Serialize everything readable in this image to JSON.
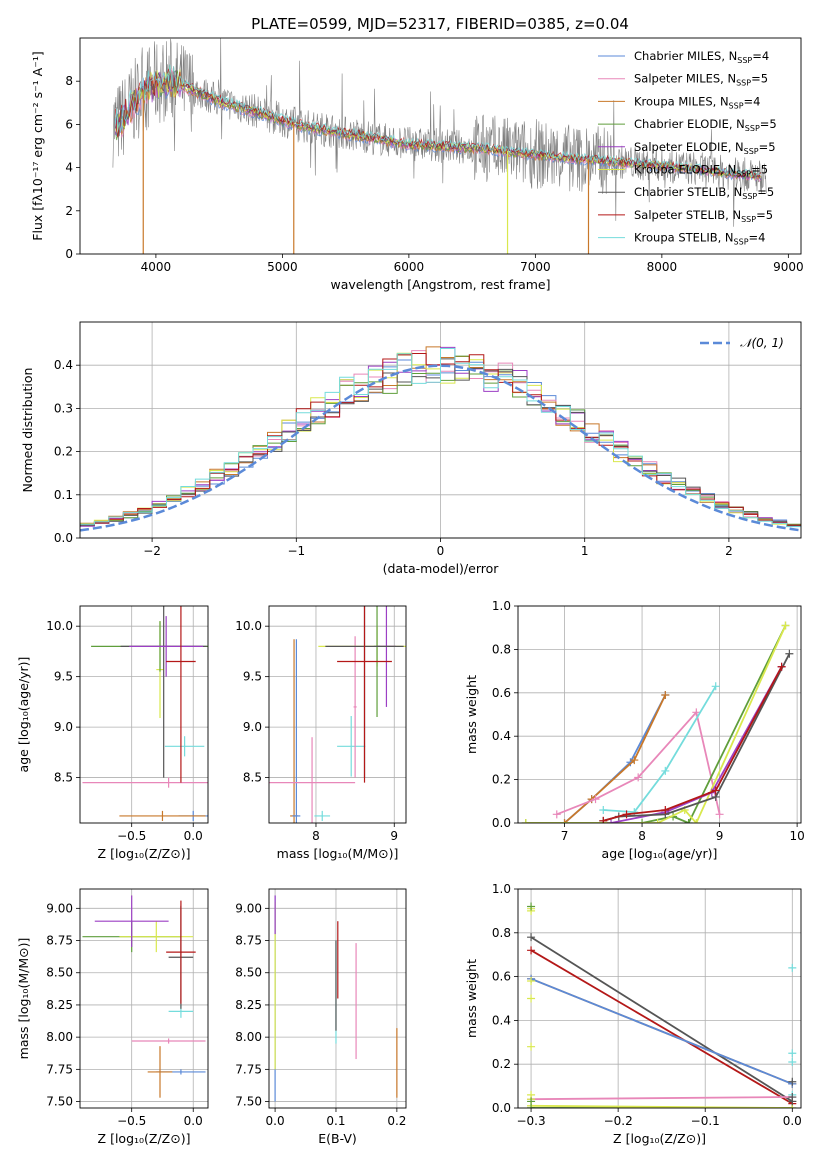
{
  "title": "PLATE=0599, MJD=52317, FIBERID=0385, z=0.04",
  "models": [
    {
      "name": "Chabrier MILES, N",
      "nssp": "4",
      "color": "#5b8ad8"
    },
    {
      "name": "Salpeter MILES, N",
      "nssp": "5",
      "color": "#e887b9"
    },
    {
      "name": "Kroupa MILES, N",
      "nssp": "4",
      "color": "#c8782a"
    },
    {
      "name": "Chabrier ELODIE, N",
      "nssp": "5",
      "color": "#5f9e3b"
    },
    {
      "name": "Salpeter ELODIE, N",
      "nssp": "5",
      "color": "#9c3fc4"
    },
    {
      "name": "Kroupa ELODIE, N",
      "nssp": "5",
      "color": "#d9e84e"
    },
    {
      "name": "Chabrier STELIB, N",
      "nssp": "5",
      "color": "#555555"
    },
    {
      "name": "Salpeter STELIB, N",
      "nssp": "5",
      "color": "#b41818"
    },
    {
      "name": "Kroupa STELIB, N",
      "nssp": "4",
      "color": "#74dcdc"
    }
  ],
  "chart_data": [
    {
      "id": "spectrum",
      "type": "line",
      "xlabel": "wavelength [Angstrom, rest frame]",
      "ylabel": "Flux [fλ10⁻¹⁷ erg cm⁻² s⁻¹ A⁻¹]",
      "xlim": [
        3400,
        9100
      ],
      "ylim": [
        0,
        10
      ],
      "xticks": [
        4000,
        5000,
        6000,
        7000,
        8000,
        9000
      ],
      "yticks": [
        0,
        2,
        4,
        6,
        8
      ],
      "observed_color": "#808080",
      "continuum_x": [
        3700,
        3800,
        3900,
        4000,
        4100,
        4300,
        4500,
        4800,
        5000,
        5200,
        5500,
        5800,
        6000,
        6300,
        6600,
        7000,
        7400,
        7800,
        8200,
        8600,
        8800
      ],
      "continuum_y": [
        6.0,
        6.8,
        7.6,
        7.9,
        8.1,
        7.6,
        7.1,
        6.6,
        6.2,
        5.9,
        5.6,
        5.3,
        5.1,
        5.0,
        4.9,
        4.6,
        4.4,
        4.2,
        4.0,
        3.7,
        3.6
      ]
    },
    {
      "id": "residuals",
      "type": "histogram",
      "xlabel": "(data-model)/error",
      "ylabel": "Normed distribution",
      "xlim": [
        -2.5,
        2.5
      ],
      "ylim": [
        0,
        0.5
      ],
      "xticks": [
        -2,
        -1,
        0,
        1,
        2
      ],
      "yticks": [
        0.0,
        0.1,
        0.2,
        0.3,
        0.4
      ],
      "legend": "𝒩(0, 1)",
      "legend_color": "#5b8ad8",
      "grid": true
    },
    {
      "id": "Z_age",
      "type": "errorbar",
      "xlabel": "Z [log₁₀(Z/Z⊙)]",
      "ylabel": "age  [log₁₀(age/yr)]",
      "xlim": [
        -0.92,
        0.12
      ],
      "ylim": [
        8.05,
        10.2
      ],
      "xticks": [
        -0.5,
        0.0
      ],
      "yticks": [
        8.5,
        9.0,
        9.5,
        10.0
      ],
      "points": [
        {
          "c": 0,
          "x": 0.0,
          "y": 8.12,
          "xerr": 0.12,
          "yerr": 0.05
        },
        {
          "c": 2,
          "x": -0.25,
          "y": 8.12,
          "xerr": 0.35,
          "yerr": 0.05
        },
        {
          "c": 1,
          "x": -0.2,
          "y": 8.45,
          "xerr": 0.7,
          "yerr": 0.05
        },
        {
          "c": 8,
          "x": -0.07,
          "y": 8.81,
          "xerr": 0.16,
          "yerr": 0.1
        },
        {
          "c": 5,
          "x": -0.27,
          "y": 9.57,
          "xerr": 0.03,
          "yerr": 0.48
        },
        {
          "c": 3,
          "x": -0.27,
          "y": 9.8,
          "xerr": 0.56,
          "yerr": 0.25
        },
        {
          "c": 6,
          "x": -0.24,
          "y": 9.8,
          "xerr": 0.35,
          "yerr": 1.3
        },
        {
          "c": 4,
          "x": -0.22,
          "y": 9.8,
          "xerr": 0.3,
          "yerr": 0.3
        },
        {
          "c": 7,
          "x": -0.1,
          "y": 9.65,
          "xerr": 0.12,
          "yerr": 1.2
        }
      ]
    },
    {
      "id": "mass_age",
      "type": "errorbar",
      "xlabel": "mass [log₁₀(M/M⊙)]",
      "ylabel": "",
      "xlim": [
        7.4,
        9.15
      ],
      "ylim": [
        8.05,
        10.2
      ],
      "xticks": [
        8,
        9
      ],
      "yticks": [
        8.5,
        9.0,
        9.5,
        10.0
      ],
      "points": [
        {
          "c": 2,
          "x": 7.72,
          "y": 8.12,
          "xerr": 0.05,
          "yerr": 1.75
        },
        {
          "c": 0,
          "x": 7.75,
          "y": 8.12,
          "xerr": 0.05,
          "yerr": 1.75
        },
        {
          "c": 8,
          "x": 8.08,
          "y": 8.12,
          "xerr": 0.1,
          "yerr": 0.05
        },
        {
          "c": 1,
          "x": 7.95,
          "y": 8.45,
          "xerr": 0.55,
          "yerr": 0.45
        },
        {
          "c": 8,
          "x": 8.45,
          "y": 8.81,
          "xerr": 0.18,
          "yerr": 0.3
        },
        {
          "c": 1,
          "x": 8.5,
          "y": 9.2,
          "xerr": 0.02,
          "yerr": 0.7
        },
        {
          "c": 5,
          "x": 8.78,
          "y": 9.8,
          "xerr": 0.75,
          "yerr": 0.2
        },
        {
          "c": 3,
          "x": 8.78,
          "y": 9.8,
          "xerr": 0.04,
          "yerr": 0.7
        },
        {
          "c": 4,
          "x": 8.9,
          "y": 9.8,
          "xerr": 0.12,
          "yerr": 0.6
        },
        {
          "c": 6,
          "x": 8.62,
          "y": 9.8,
          "xerr": 0.5,
          "yerr": 1.3
        },
        {
          "c": 7,
          "x": 8.62,
          "y": 9.65,
          "xerr": 0.35,
          "yerr": 1.2
        }
      ]
    },
    {
      "id": "age_weight",
      "type": "line",
      "xlabel": "age  [log₁₀(age/yr)]",
      "ylabel": "mass weight",
      "xlim": [
        6.4,
        10.05
      ],
      "ylim": [
        0,
        1
      ],
      "xticks": [
        7,
        8,
        9,
        10
      ],
      "yticks": [
        0.0,
        0.2,
        0.4,
        0.6,
        0.8,
        1.0
      ],
      "series": [
        {
          "c": 0,
          "x": [
            7.0,
            7.35,
            7.85,
            8.3
          ],
          "y": [
            0.0,
            0.11,
            0.28,
            0.59
          ]
        },
        {
          "c": 2,
          "x": 7.0,
          "x_": [],
          "x2": [
            7.0,
            7.35,
            7.9,
            8.3
          ],
          "y": [
            0.0,
            0.11,
            0.29,
            0.59
          ]
        },
        {
          "c": 1,
          "x": [
            6.9,
            7.4,
            7.95,
            8.7,
            9.0
          ],
          "y": [
            0.04,
            0.11,
            0.21,
            0.51,
            0.04
          ]
        },
        {
          "c": 8,
          "x": [
            7.5,
            7.9,
            8.3,
            8.95
          ],
          "y": [
            0.06,
            0.05,
            0.24,
            0.63
          ]
        },
        {
          "c": 3,
          "x": [
            6.5,
            8.0,
            8.4,
            8.6,
            9.85
          ],
          "y": [
            0.0,
            0.0,
            0.03,
            0.0,
            0.91
          ]
        },
        {
          "c": 5,
          "x": [
            6.5,
            8.2,
            8.55,
            8.7,
            9.85
          ],
          "y": [
            0.0,
            0.0,
            0.06,
            0.0,
            0.91
          ]
        },
        {
          "c": 4,
          "x": [
            7.6,
            8.3,
            8.9,
            9.8
          ],
          "y": [
            0.0,
            0.05,
            0.14,
            0.72
          ]
        },
        {
          "c": 6,
          "x": [
            7.5,
            7.7,
            8.3,
            8.95,
            9.9
          ],
          "y": [
            0.01,
            0.03,
            0.04,
            0.12,
            0.78
          ]
        },
        {
          "c": 7,
          "x": [
            7.5,
            7.8,
            8.3,
            8.95,
            9.8
          ],
          "y": [
            0.01,
            0.04,
            0.06,
            0.15,
            0.72
          ]
        }
      ]
    },
    {
      "id": "Z_mass",
      "type": "errorbar",
      "xlabel": "Z [log₁₀(Z/Z⊙)]",
      "ylabel": "mass [log₁₀(M/M⊙)]",
      "xlim": [
        -0.92,
        0.12
      ],
      "ylim": [
        7.45,
        9.15
      ],
      "xticks": [
        -0.5,
        0.0
      ],
      "yticks": [
        7.5,
        7.75,
        8.0,
        8.25,
        8.5,
        8.75,
        9.0
      ],
      "points": [
        {
          "c": 0,
          "x": -0.1,
          "y": 7.73,
          "xerr": 0.2,
          "yerr": 0.02
        },
        {
          "c": 2,
          "x": -0.27,
          "y": 7.73,
          "xerr": 0.1,
          "yerr": 0.2
        },
        {
          "c": 1,
          "x": -0.2,
          "y": 7.97,
          "xerr": 0.3,
          "yerr": 0.02
        },
        {
          "c": 8,
          "x": -0.1,
          "y": 8.2,
          "xerr": 0.1,
          "yerr": 0.05
        },
        {
          "c": 3,
          "x": -0.5,
          "y": 8.78,
          "xerr": 0.4,
          "yerr": 0.12
        },
        {
          "c": 5,
          "x": -0.3,
          "y": 8.78,
          "xerr": 0.3,
          "yerr": 0.12
        },
        {
          "c": 4,
          "x": -0.5,
          "y": 8.9,
          "xerr": 0.3,
          "yerr": 0.2
        },
        {
          "c": 6,
          "x": -0.1,
          "y": 8.62,
          "xerr": 0.1,
          "yerr": 0.4
        },
        {
          "c": 7,
          "x": -0.1,
          "y": 8.66,
          "xerr": 0.12,
          "yerr": 0.4
        }
      ]
    },
    {
      "id": "ebv_mass",
      "type": "errorbar",
      "xlabel": "E(B-V)",
      "ylabel": "",
      "xlim": [
        -0.01,
        0.215
      ],
      "ylim": [
        7.45,
        9.15
      ],
      "xticks": [
        0.0,
        0.1,
        0.2
      ],
      "yticks": [
        7.5,
        7.75,
        8.0,
        8.25,
        8.5,
        8.75,
        9.0
      ],
      "points": [
        {
          "c": 0,
          "x": 0.0,
          "y": 8.3,
          "xerr": 0.0,
          "yerr": 0.8
        },
        {
          "c": 5,
          "x": 0.0,
          "y": 8.4,
          "xerr": 0.0,
          "yerr": 0.65
        },
        {
          "c": 4,
          "x": 0.0,
          "y": 8.95,
          "xerr": 0.0,
          "yerr": 0.15
        },
        {
          "c": 8,
          "x": 0.1,
          "y": 8.35,
          "xerr": 0.0,
          "yerr": 0.4
        },
        {
          "c": 6,
          "x": 0.1,
          "y": 8.4,
          "xerr": 0.0,
          "yerr": 0.35
        },
        {
          "c": 7,
          "x": 0.103,
          "y": 8.6,
          "xerr": 0.0,
          "yerr": 0.3
        },
        {
          "c": 1,
          "x": 0.133,
          "y": 8.28,
          "xerr": 0.0,
          "yerr": 0.45
        },
        {
          "c": 2,
          "x": 0.2,
          "y": 7.8,
          "xerr": 0.0,
          "yerr": 0.27
        }
      ]
    },
    {
      "id": "Z_weight",
      "type": "line",
      "xlabel": "Z [log₁₀(Z/Z⊙)]",
      "ylabel": "mass weight",
      "xlim": [
        -0.315,
        0.01
      ],
      "ylim": [
        0,
        1
      ],
      "xticks": [
        -0.3,
        -0.2,
        -0.1,
        0.0
      ],
      "yticks": [
        0.0,
        0.2,
        0.4,
        0.6,
        0.8,
        1.0
      ],
      "series": [
        {
          "c": 6,
          "x": [
            -0.3,
            0.0
          ],
          "y": [
            0.78,
            0.03
          ]
        },
        {
          "c": 7,
          "x": [
            -0.3,
            0.0
          ],
          "y": [
            0.72,
            0.02
          ]
        },
        {
          "c": 2,
          "x": [
            -0.3,
            0.0
          ],
          "y": [
            0.59,
            0.11
          ]
        },
        {
          "c": 0,
          "x": [
            -0.3,
            0.0
          ],
          "y": [
            0.59,
            0.11
          ]
        },
        {
          "c": 1,
          "x": [
            -0.3,
            0.0
          ],
          "y": [
            0.04,
            0.05
          ]
        },
        {
          "c": 3,
          "x": [
            -0.3,
            0.0
          ],
          "y": [
            0.0,
            0.0
          ]
        },
        {
          "c": 5,
          "x": [
            -0.3,
            0.0
          ],
          "y": [
            0.01,
            0.0
          ]
        }
      ],
      "markers": [
        {
          "c": 5,
          "x": -0.3,
          "ys": [
            0.91,
            0.9,
            0.58,
            0.5,
            0.28,
            0.06,
            0.04,
            0.01
          ]
        },
        {
          "c": 3,
          "x": -0.3,
          "ys": [
            0.92,
            0.03,
            0.0
          ]
        },
        {
          "c": 8,
          "x": 0.0,
          "ys": [
            0.64,
            0.25,
            0.21,
            0.06
          ]
        },
        {
          "c": 6,
          "x": 0.0,
          "ys": [
            0.12,
            0.05,
            0.03
          ]
        }
      ]
    }
  ]
}
